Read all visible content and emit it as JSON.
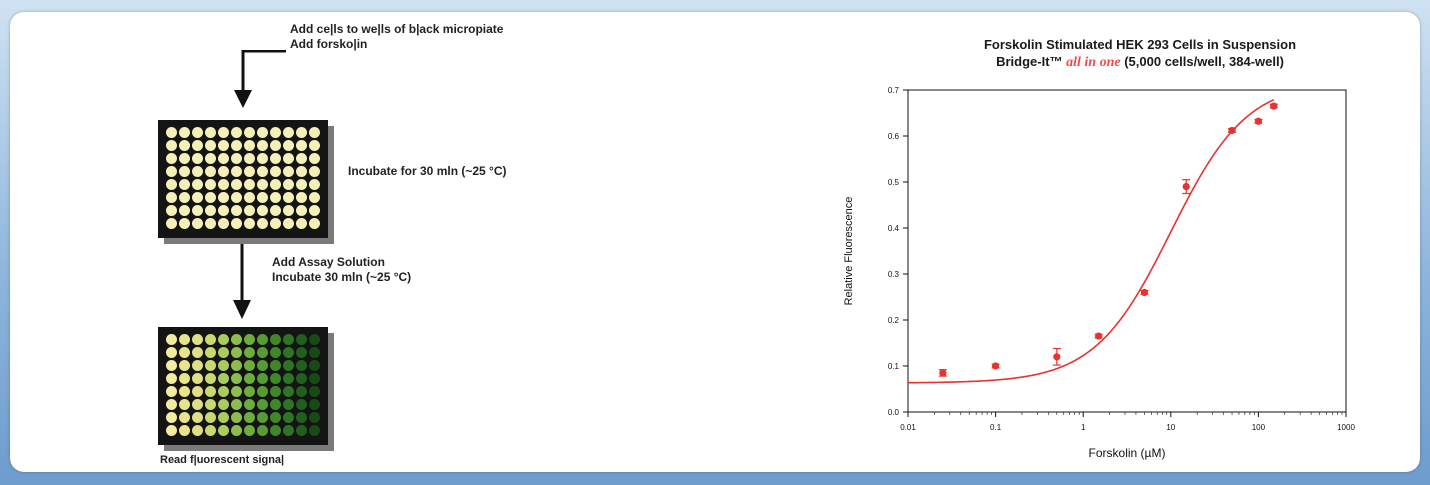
{
  "workflow": {
    "step1": {
      "line1": "Add ce|ls to we|ls of b|ack micropiate",
      "line2": "Add forsko|in"
    },
    "step2": {
      "label": "Incubate for 30 mln (~25 °C)"
    },
    "step3": {
      "line1": "Add Assay Solution",
      "line2": "Incubate 30 mln (~25 °C)"
    },
    "step4": {
      "label": "Read f|uorescent signa|"
    },
    "plate_rows": 8,
    "plate_cols": 12,
    "plate1_well_color": "#f4f0b8",
    "plate2_column_colors": [
      "#f2eca0",
      "#eae489",
      "#dedf86",
      "#c8d96e",
      "#a9cc5d",
      "#8dbd4f",
      "#6eac3e",
      "#579b35",
      "#3f872a",
      "#2f7424",
      "#215f1e",
      "#174a16"
    ]
  },
  "chart_data": {
    "type": "scatter",
    "title_line1": "Forskolin Stimulated HEK 293 Cells in Suspension",
    "title_line2_prefix": "Bridge-It™ ",
    "title_line2_emphasis": "all in one",
    "title_line2_suffix": " (5,000 cells/well, 384-well)",
    "xlabel": "Forskolin (µM)",
    "ylabel": "Relative Fluorescence",
    "xscale": "log",
    "xlim": [
      0.01,
      1000
    ],
    "ylim": [
      0,
      0.7
    ],
    "x_ticks": [
      "0.01",
      "0.1",
      "1",
      "10",
      "100",
      "1000"
    ],
    "y_ticks": [
      "0.0",
      "0.1",
      "0.2",
      "0.3",
      "0.4",
      "0.5",
      "0.6",
      "0.7"
    ],
    "points": [
      {
        "x": 0.025,
        "y": 0.085,
        "err": 0.007
      },
      {
        "x": 0.1,
        "y": 0.1,
        "err": 0.004
      },
      {
        "x": 0.5,
        "y": 0.12,
        "err": 0.018
      },
      {
        "x": 1.5,
        "y": 0.165,
        "err": 0.004
      },
      {
        "x": 5,
        "y": 0.26,
        "err": 0.004
      },
      {
        "x": 15,
        "y": 0.49,
        "err": 0.015
      },
      {
        "x": 50,
        "y": 0.612,
        "err": 0.004
      },
      {
        "x": 100,
        "y": 0.632,
        "err": 0.004
      },
      {
        "x": 150,
        "y": 0.665,
        "err": 0.004
      }
    ],
    "fit": {
      "bottom": 0.063,
      "top": 0.72,
      "ec50": 10,
      "hill": 1.0,
      "x_start": 0.01,
      "x_end": 150
    },
    "series_color": "#e8322f",
    "grid": false
  }
}
